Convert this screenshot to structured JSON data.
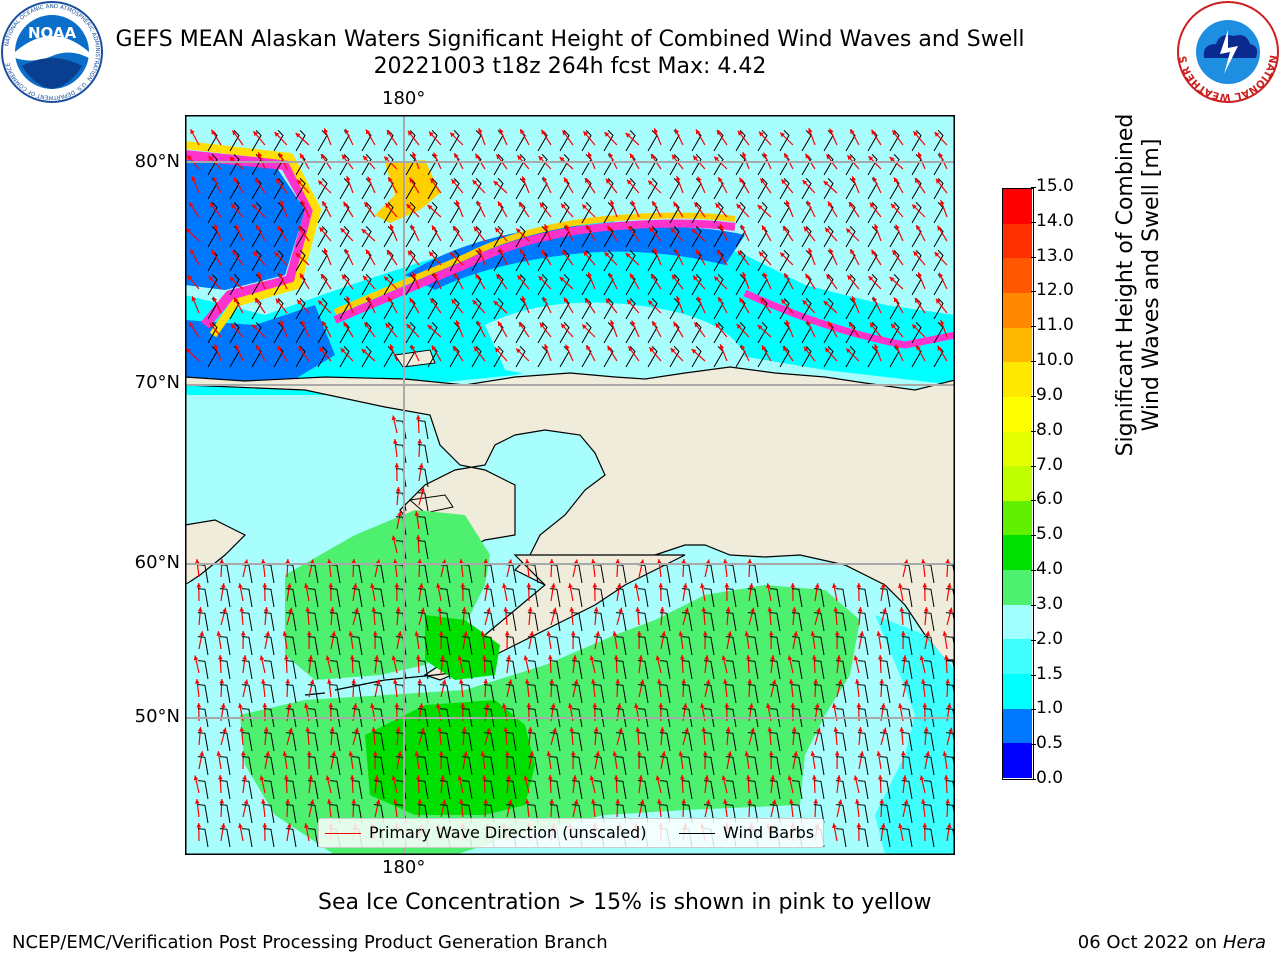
{
  "header": {
    "title_line1": "GEFS MEAN Alaskan Waters Significant Height of Combined Wind Waves and Swell",
    "title_line2": "20221003 t18z 264h fcst   Max: 4.42"
  },
  "logos": {
    "noaa_text": "NOAA",
    "noaa_ring_top": "NATIONAL OCEANIC AND ATMOSPHERIC ADMINISTRATION",
    "noaa_ring_bottom": "U.S. DEPARTMENT OF COMMERCE",
    "nws_ring": "NATIONAL WEATHER SERVICE"
  },
  "map": {
    "lon_label_top": "180°",
    "lon_label_bottom": "180°",
    "lat_labels": [
      "80°N",
      "70°N",
      "60°N",
      "50°N"
    ],
    "colors": {
      "land": "#efecdc",
      "coast": "#000000",
      "grid": "#a9a9a9",
      "wave_arrow": "#ff0000",
      "wind_barb": "#000000"
    },
    "legend": {
      "wave_label": "Primary Wave Direction (unscaled)",
      "barb_label": "Wind Barbs"
    }
  },
  "colorbar": {
    "label_line1": "Significant Height of Combined",
    "label_line2": "Wind Waves and Swell [m]",
    "ticks": [
      "0.0",
      "0.5",
      "1.0",
      "1.5",
      "2.0",
      "3.0",
      "4.0",
      "5.0",
      "6.0",
      "7.0",
      "8.0",
      "9.0",
      "10.0",
      "11.0",
      "12.0",
      "13.0",
      "14.0",
      "15.0"
    ],
    "colors": [
      "#0000ff",
      "#0077ff",
      "#00ffff",
      "#40ffff",
      "#a0ffff",
      "#4ef070",
      "#00e000",
      "#60f000",
      "#c0ff00",
      "#e4ff00",
      "#ffff00",
      "#ffe800",
      "#ffb800",
      "#ff8800",
      "#ff5800",
      "#ff3000",
      "#ff0000"
    ]
  },
  "note": "Sea Ice Concentration > 15% is shown in pink to yellow",
  "footer": {
    "left": "NCEP/EMC/Verification Post Processing Product Generation Branch",
    "right_prefix": "06 Oct 2022 on ",
    "right_host": "Hera"
  }
}
